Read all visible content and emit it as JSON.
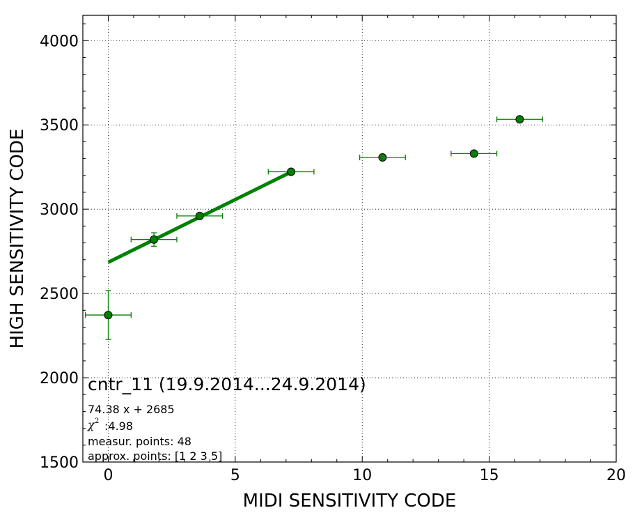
{
  "chart_data": {
    "type": "scatter",
    "xlabel": "MIDI SENSITIVITY CODE",
    "ylabel": "HIGH SENSITIVITY CODE",
    "xlim": [
      -1,
      20
    ],
    "ylim": [
      1500,
      4150
    ],
    "xticks": [
      0,
      5,
      10,
      15,
      20
    ],
    "yticks": [
      1500,
      2000,
      2500,
      3000,
      3500,
      4000
    ],
    "grid": true,
    "grid_style": "dotted",
    "colors": {
      "marker": "#008000",
      "line": "#008000",
      "errorbar": "#008000",
      "axis": "#000000"
    },
    "series": [
      {
        "type": "scatter",
        "points": [
          {
            "x": 0.0,
            "y": 2372,
            "xerr": 0.9,
            "yerr": 145
          },
          {
            "x": 1.8,
            "y": 2820,
            "xerr": 0.9,
            "yerr": 40
          },
          {
            "x": 3.6,
            "y": 2960,
            "xerr": 0.9,
            "yerr": 0
          },
          {
            "x": 7.2,
            "y": 3222,
            "xerr": 0.9,
            "yerr": 0
          },
          {
            "x": 10.8,
            "y": 3307,
            "xerr": 0.9,
            "yerr": 0
          },
          {
            "x": 14.4,
            "y": 3330,
            "xerr": 0.9,
            "yerr": 0
          },
          {
            "x": 16.2,
            "y": 3533,
            "xerr": 0.9,
            "yerr": 0
          }
        ]
      },
      {
        "type": "line",
        "slope": 74.38,
        "intercept": 2685,
        "x_range": [
          0,
          7.2
        ]
      }
    ],
    "annotations": {
      "title": "cntr_11 (19.9.2014...24.9.2014)",
      "fit": "74.38 x + 2685",
      "chi_symbol": "χ",
      "chi_sup": "2",
      "chi_value": ":4.98",
      "measur_points": "measur. points: 48",
      "approx_points": "approx. points: [1 2 3 5]"
    }
  }
}
